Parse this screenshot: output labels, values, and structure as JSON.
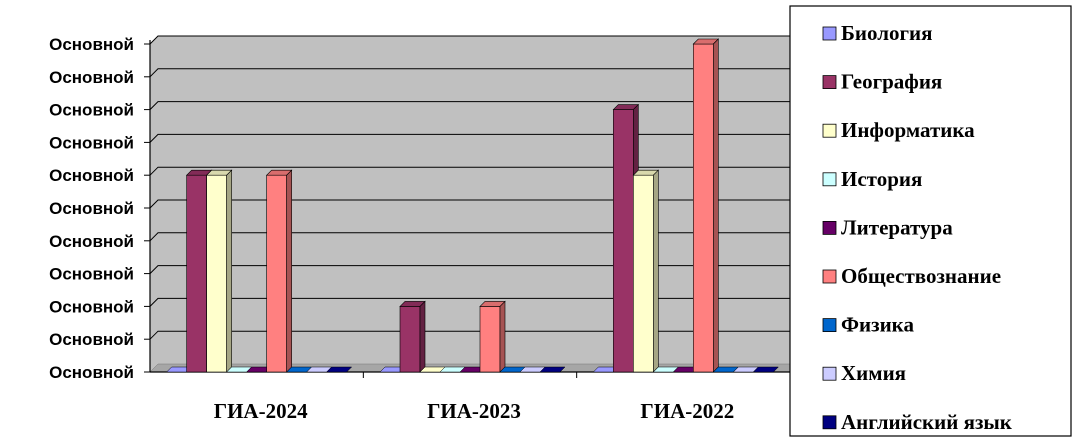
{
  "chart_data": {
    "type": "bar",
    "title": "",
    "xlabel": "",
    "ylabel": "",
    "ylim": [
      0,
      10
    ],
    "grid": true,
    "legend_position": "right",
    "y_tick_labels": [
      "Основной",
      "Основной",
      "Основной",
      "Основной",
      "Основной",
      "Основной",
      "Основной",
      "Основной",
      "Основной",
      "Основной",
      "Основной"
    ],
    "categories": [
      "ГИА-2024",
      "ГИА-2023",
      "ГИА-2022"
    ],
    "series": [
      {
        "name": "Биология",
        "color": "#9999ff",
        "values": [
          0,
          0,
          0
        ]
      },
      {
        "name": "География",
        "color": "#993366",
        "values": [
          6,
          2,
          8
        ]
      },
      {
        "name": "Информатика",
        "color": "#ffffcc",
        "values": [
          6,
          0,
          6
        ]
      },
      {
        "name": "История",
        "color": "#ccffff",
        "values": [
          0,
          0,
          0
        ]
      },
      {
        "name": "Литература",
        "color": "#660066",
        "values": [
          0,
          0,
          0
        ]
      },
      {
        "name": "Обществознание",
        "color": "#ff8080",
        "values": [
          6,
          2,
          10
        ]
      },
      {
        "name": "Физика",
        "color": "#0066cc",
        "values": [
          0,
          0,
          0
        ]
      },
      {
        "name": "Химия",
        "color": "#ccccff",
        "values": [
          0,
          0,
          0
        ]
      },
      {
        "name": "Английский язык",
        "color": "#000080",
        "values": [
          0,
          0,
          0
        ]
      }
    ]
  }
}
